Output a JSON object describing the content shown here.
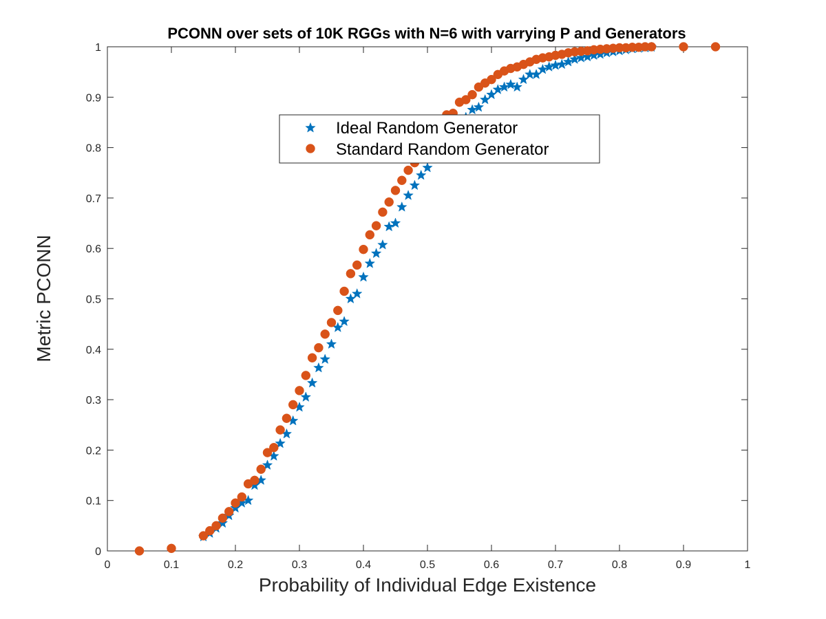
{
  "chart_data": {
    "type": "scatter",
    "title": "PCONN over sets of 10K RGGs with N=6 with varrying P and Generators",
    "xlabel": "Probability of Individual Edge Existence",
    "ylabel": "Metric PCONN",
    "xlim": [
      0,
      1
    ],
    "ylim": [
      0,
      1
    ],
    "xticks": [
      "0",
      "0.1",
      "0.2",
      "0.3",
      "0.4",
      "0.5",
      "0.6",
      "0.7",
      "0.8",
      "0.9",
      "1"
    ],
    "yticks": [
      "0",
      "0.1",
      "0.2",
      "0.3",
      "0.4",
      "0.5",
      "0.6",
      "0.7",
      "0.8",
      "0.9",
      "1"
    ],
    "grid": false,
    "legend": "upper-center",
    "series": [
      {
        "name": "Ideal Random Generator",
        "marker": "star",
        "color": "#0072BD",
        "x": [
          0.15,
          0.16,
          0.17,
          0.18,
          0.19,
          0.2,
          0.21,
          0.22,
          0.23,
          0.24,
          0.25,
          0.26,
          0.27,
          0.28,
          0.29,
          0.3,
          0.31,
          0.32,
          0.33,
          0.34,
          0.35,
          0.36,
          0.37,
          0.38,
          0.39,
          0.4,
          0.41,
          0.42,
          0.43,
          0.44,
          0.45,
          0.46,
          0.47,
          0.48,
          0.49,
          0.5,
          0.51,
          0.52,
          0.53,
          0.54,
          0.55,
          0.56,
          0.57,
          0.58,
          0.59,
          0.6,
          0.61,
          0.62,
          0.63,
          0.64,
          0.65,
          0.66,
          0.67,
          0.68,
          0.69,
          0.7,
          0.71,
          0.72,
          0.73,
          0.74,
          0.75,
          0.76,
          0.77,
          0.78,
          0.79,
          0.8,
          0.81,
          0.82,
          0.83,
          0.84,
          0.85
        ],
        "y": [
          0.028,
          0.035,
          0.045,
          0.055,
          0.07,
          0.085,
          0.095,
          0.1,
          0.13,
          0.14,
          0.17,
          0.188,
          0.213,
          0.232,
          0.258,
          0.285,
          0.305,
          0.333,
          0.363,
          0.38,
          0.41,
          0.443,
          0.455,
          0.5,
          0.51,
          0.543,
          0.57,
          0.59,
          0.607,
          0.643,
          0.65,
          0.682,
          0.705,
          0.725,
          0.745,
          0.76,
          0.79,
          0.815,
          0.83,
          0.84,
          0.855,
          0.86,
          0.875,
          0.88,
          0.895,
          0.905,
          0.915,
          0.92,
          0.925,
          0.92,
          0.935,
          0.945,
          0.945,
          0.955,
          0.96,
          0.963,
          0.965,
          0.97,
          0.975,
          0.978,
          0.98,
          0.983,
          0.985,
          0.988,
          0.99,
          0.992,
          0.994,
          0.996,
          0.997,
          0.998,
          0.999
        ]
      },
      {
        "name": "Standard Random Generator",
        "marker": "circle",
        "color": "#D95319",
        "x": [
          0.05,
          0.1,
          0.15,
          0.16,
          0.17,
          0.18,
          0.19,
          0.2,
          0.21,
          0.22,
          0.23,
          0.24,
          0.25,
          0.26,
          0.27,
          0.28,
          0.29,
          0.3,
          0.31,
          0.32,
          0.33,
          0.34,
          0.35,
          0.36,
          0.37,
          0.38,
          0.39,
          0.4,
          0.41,
          0.42,
          0.43,
          0.44,
          0.45,
          0.46,
          0.47,
          0.48,
          0.49,
          0.5,
          0.51,
          0.52,
          0.53,
          0.54,
          0.55,
          0.56,
          0.57,
          0.58,
          0.59,
          0.6,
          0.61,
          0.62,
          0.63,
          0.64,
          0.65,
          0.66,
          0.67,
          0.68,
          0.69,
          0.7,
          0.71,
          0.72,
          0.73,
          0.74,
          0.75,
          0.76,
          0.77,
          0.78,
          0.79,
          0.8,
          0.81,
          0.82,
          0.83,
          0.84,
          0.85,
          0.9,
          0.95
        ],
        "y": [
          0.0,
          0.005,
          0.03,
          0.04,
          0.05,
          0.065,
          0.078,
          0.095,
          0.107,
          0.133,
          0.14,
          0.162,
          0.195,
          0.205,
          0.24,
          0.263,
          0.29,
          0.318,
          0.348,
          0.383,
          0.403,
          0.43,
          0.453,
          0.477,
          0.515,
          0.55,
          0.567,
          0.598,
          0.627,
          0.645,
          0.672,
          0.692,
          0.715,
          0.735,
          0.755,
          0.77,
          0.795,
          0.815,
          0.835,
          0.85,
          0.865,
          0.868,
          0.89,
          0.895,
          0.905,
          0.92,
          0.928,
          0.935,
          0.945,
          0.952,
          0.957,
          0.96,
          0.965,
          0.97,
          0.975,
          0.978,
          0.98,
          0.983,
          0.985,
          0.988,
          0.99,
          0.991,
          0.992,
          0.994,
          0.995,
          0.996,
          0.997,
          0.998,
          0.998,
          0.999,
          0.999,
          1.0,
          1.0,
          1.0,
          1.0
        ]
      }
    ]
  }
}
